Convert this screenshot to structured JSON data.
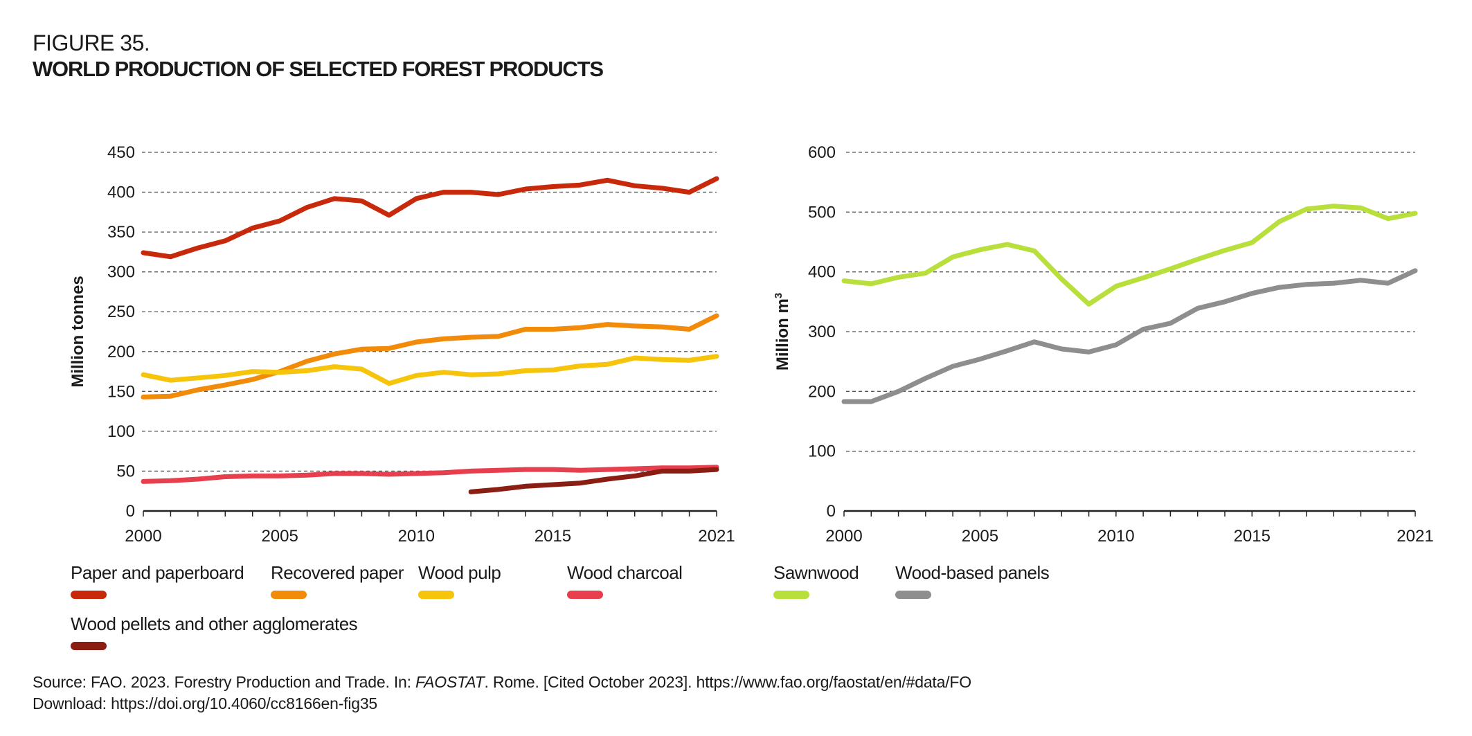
{
  "figure": {
    "label": "FIGURE 35.",
    "title": "WORLD PRODUCTION OF SELECTED FOREST PRODUCTS"
  },
  "chart_data": [
    {
      "type": "line",
      "title": "",
      "xlabel": "",
      "ylabel": "Million tonnes",
      "x": [
        2000,
        2001,
        2002,
        2003,
        2004,
        2005,
        2006,
        2007,
        2008,
        2009,
        2010,
        2011,
        2012,
        2013,
        2014,
        2015,
        2016,
        2017,
        2018,
        2019,
        2020,
        2021
      ],
      "xticks": [
        "2000",
        "2005",
        "2010",
        "2015",
        "2021"
      ],
      "yticks": [
        "0",
        "50",
        "100",
        "150",
        "200",
        "250",
        "300",
        "350",
        "400",
        "450"
      ],
      "ylim": [
        0,
        450
      ],
      "xlim": [
        2000,
        2021
      ],
      "grid": "horizontal dashed",
      "legend_position": "bottom",
      "series": [
        {
          "name": "Paper and paperboard",
          "color": "#C8290A",
          "values": [
            324,
            319,
            330,
            339,
            355,
            364,
            381,
            392,
            389,
            371,
            392,
            400,
            400,
            397,
            404,
            407,
            409,
            415,
            408,
            405,
            400,
            417
          ]
        },
        {
          "name": "Recovered paper",
          "color": "#F28A0A",
          "values": [
            143,
            144,
            152,
            158,
            165,
            175,
            188,
            197,
            203,
            204,
            212,
            216,
            218,
            219,
            228,
            228,
            230,
            234,
            232,
            231,
            228,
            245
          ]
        },
        {
          "name": "Wood pulp",
          "color": "#F7C40C",
          "values": [
            171,
            164,
            167,
            170,
            175,
            174,
            176,
            181,
            178,
            160,
            170,
            174,
            171,
            172,
            176,
            177,
            182,
            184,
            192,
            190,
            189,
            194
          ]
        },
        {
          "name": "Wood charcoal",
          "color": "#E83F4E",
          "values": [
            37,
            38,
            40,
            43,
            44,
            44,
            45,
            47,
            47,
            46,
            47,
            48,
            50,
            51,
            52,
            52,
            51,
            52,
            53,
            54,
            54,
            55
          ]
        },
        {
          "name": "Wood pellets and other agglomerates",
          "color": "#8B1E12",
          "values": [
            null,
            null,
            null,
            null,
            null,
            null,
            null,
            null,
            null,
            null,
            null,
            null,
            24,
            27,
            31,
            33,
            35,
            40,
            44,
            50,
            50,
            52
          ]
        }
      ]
    },
    {
      "type": "line",
      "title": "",
      "xlabel": "",
      "ylabel": "Million m³",
      "ylabel_main": "Million m",
      "ylabel_sup": "3",
      "x": [
        2000,
        2001,
        2002,
        2003,
        2004,
        2005,
        2006,
        2007,
        2008,
        2009,
        2010,
        2011,
        2012,
        2013,
        2014,
        2015,
        2016,
        2017,
        2018,
        2019,
        2020,
        2021
      ],
      "xticks": [
        "2000",
        "2005",
        "2010",
        "2015",
        "2021"
      ],
      "yticks": [
        "0",
        "100",
        "200",
        "300",
        "400",
        "500",
        "600"
      ],
      "ylim": [
        0,
        600
      ],
      "xlim": [
        2000,
        2021
      ],
      "grid": "horizontal dashed",
      "legend_position": "bottom",
      "series": [
        {
          "name": "Sawnwood",
          "color": "#B8DF3C",
          "values": [
            385,
            380,
            391,
            398,
            425,
            437,
            446,
            435,
            388,
            346,
            376,
            390,
            405,
            421,
            436,
            449,
            484,
            505,
            510,
            507,
            489,
            498
          ]
        },
        {
          "name": "Wood-based panels",
          "color": "#8E8E8E",
          "values": [
            183,
            183,
            200,
            222,
            242,
            254,
            268,
            283,
            271,
            266,
            278,
            304,
            314,
            339,
            350,
            364,
            374,
            379,
            381,
            386,
            381,
            402
          ]
        }
      ]
    }
  ],
  "source": {
    "prefix": "Source: FAO. 2023. Forestry Production and Trade. In: ",
    "italic": "FAOSTAT",
    "suffix": ". Rome. [Cited October 2023]. https://www.fao.org/faostat/en/#data/FO",
    "download": "Download: https://doi.org/10.4060/cc8166en-fig35"
  }
}
